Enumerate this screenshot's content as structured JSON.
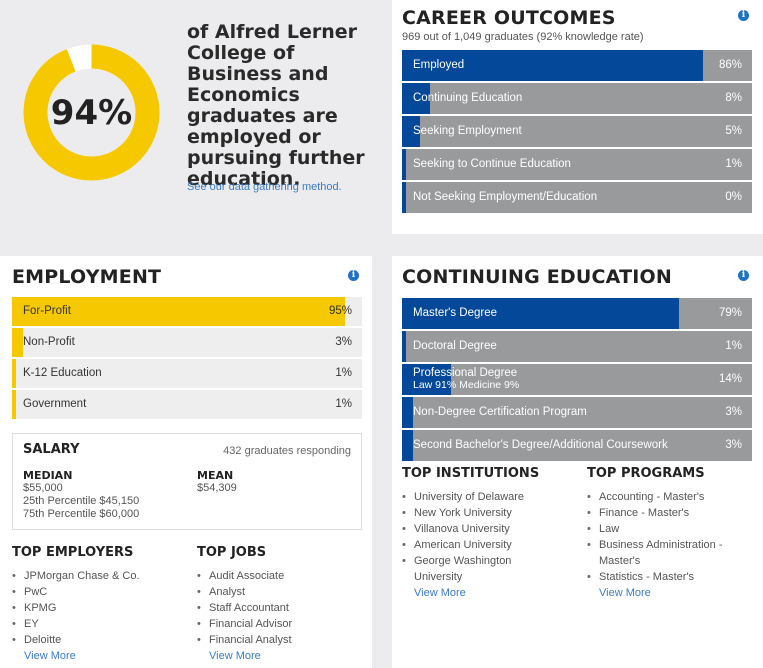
{
  "intro": {
    "percent": "94%",
    "percent_value": 0.94,
    "headline": "of Alfred Lerner College of Business and Economics graduates are employed or pursuing further education.",
    "link": "See our data gathering method."
  },
  "career": {
    "title": "CAREER OUTCOMES",
    "subtitle": "969 out of 1,049 graduates (92% knowledge rate)",
    "bars": [
      {
        "label": "Employed",
        "pct": "86%",
        "value": 86
      },
      {
        "label": "Continuing Education",
        "pct": "8%",
        "value": 8
      },
      {
        "label": "Seeking Employment",
        "pct": "5%",
        "value": 5
      },
      {
        "label": "Seeking to Continue Education",
        "pct": "1%",
        "value": 1
      },
      {
        "label": "Not Seeking Employment/Education",
        "pct": "0%",
        "value": 0
      }
    ]
  },
  "employment": {
    "title": "EMPLOYMENT",
    "bars": [
      {
        "label": "For-Profit",
        "pct": "95%",
        "value": 95
      },
      {
        "label": "Non-Profit",
        "pct": "3%",
        "value": 3
      },
      {
        "label": "K-12 Education",
        "pct": "1%",
        "value": 1
      },
      {
        "label": "Government",
        "pct": "1%",
        "value": 1
      }
    ],
    "salary": {
      "title": "SALARY",
      "responding": "432 graduates responding",
      "median_label": "MEDIAN",
      "median": "$55,000",
      "p25": "25th Percentile $45,150",
      "p75": "75th Percentile $60,000",
      "mean_label": "MEAN",
      "mean": "$54,309"
    },
    "top_employers": {
      "title": "TOP EMPLOYERS",
      "items": [
        "JPMorgan Chase & Co.",
        "PwC",
        "KPMG",
        "EY",
        "Deloitte"
      ],
      "more": "View More"
    },
    "top_jobs": {
      "title": "TOP JOBS",
      "items": [
        "Audit Associate",
        "Analyst",
        "Staff Accountant",
        "Financial Advisor",
        "Financial Analyst"
      ],
      "more": "View More"
    }
  },
  "continuing": {
    "title": "CONTINUING EDUCATION",
    "bars": [
      {
        "label": "Master's Degree",
        "pct": "79%",
        "value": 79
      },
      {
        "label": "Doctoral Degree",
        "pct": "1%",
        "value": 1
      },
      {
        "label": "Professional Degree",
        "sublabel": "Law 91% Medicine 9%",
        "pct": "14%",
        "value": 14
      },
      {
        "label": "Non-Degree Certification Program",
        "pct": "3%",
        "value": 3
      },
      {
        "label": "Second Bachelor's Degree/Additional Coursework",
        "pct": "3%",
        "value": 3
      }
    ],
    "top_institutions": {
      "title": "TOP INSTITUTIONS",
      "items": [
        "University of Delaware",
        "New York University",
        "Villanova University",
        "American University",
        "George Washington University"
      ],
      "more": "View More"
    },
    "top_programs": {
      "title": "TOP PROGRAMS",
      "items": [
        "Accounting - Master's",
        "Finance - Master's",
        "Law",
        "Business Administration - Master's",
        "Statistics - Master's"
      ],
      "more": "View More"
    }
  },
  "colors": {
    "blue": "#04489a",
    "gray_bar": "#999a9c",
    "yellow": "#f6c800",
    "link": "#3b7cc4"
  }
}
